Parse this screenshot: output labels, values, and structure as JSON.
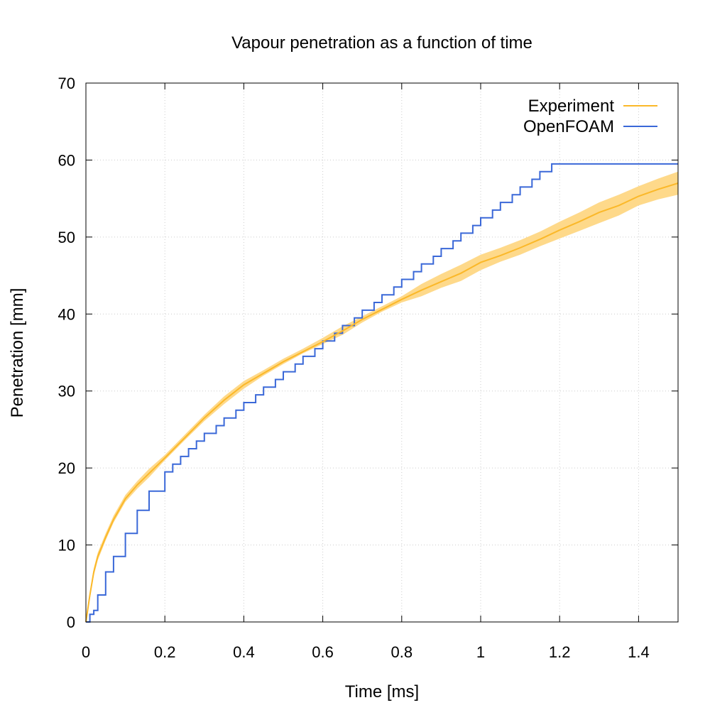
{
  "chart_data": {
    "type": "line",
    "title": "Vapour penetration as a function of time",
    "xlabel": "Time [ms]",
    "ylabel": "Penetration [mm]",
    "xlim": [
      0,
      1.5
    ],
    "ylim": [
      0,
      70
    ],
    "x_ticks": [
      0,
      0.2,
      0.4,
      0.6,
      0.8,
      1,
      1.2,
      1.4
    ],
    "x_tick_labels": [
      "0",
      "0.2",
      "0.4",
      "0.6",
      "0.8",
      "1",
      "1.2",
      "1.4"
    ],
    "y_ticks": [
      0,
      10,
      20,
      30,
      40,
      50,
      60,
      70
    ],
    "y_tick_labels": [
      "0",
      "10",
      "20",
      "30",
      "40",
      "50",
      "60",
      "70"
    ],
    "grid": true,
    "legend_position": "top-right",
    "series": [
      {
        "name": "Experiment",
        "style": "line-with-band",
        "color": "#fbb829",
        "band_color": "#fed98a",
        "x": [
          0,
          0.01,
          0.02,
          0.03,
          0.05,
          0.07,
          0.1,
          0.13,
          0.16,
          0.2,
          0.25,
          0.3,
          0.35,
          0.4,
          0.45,
          0.5,
          0.55,
          0.6,
          0.65,
          0.7,
          0.75,
          0.8,
          0.85,
          0.9,
          0.95,
          1.0,
          1.05,
          1.1,
          1.15,
          1.2,
          1.25,
          1.3,
          1.35,
          1.4,
          1.45,
          1.5
        ],
        "y": [
          0,
          3.5,
          6.5,
          8.5,
          11,
          13.3,
          16,
          17.8,
          19.3,
          21.3,
          23.9,
          26.5,
          28.8,
          30.8,
          32.3,
          33.8,
          35.1,
          36.4,
          37.8,
          39.3,
          40.6,
          41.9,
          43.1,
          44.2,
          45.3,
          46.7,
          47.6,
          48.6,
          49.7,
          50.9,
          52.0,
          53.2,
          54.1,
          55.3,
          56.2,
          57.0
        ],
        "lower": [
          0,
          3.0,
          6.0,
          8.0,
          10.6,
          12.9,
          15.6,
          17.3,
          18.8,
          21.0,
          23.6,
          26.1,
          28.3,
          30.3,
          32.0,
          33.5,
          34.9,
          36.1,
          37.3,
          38.9,
          40.3,
          41.5,
          42.3,
          43.4,
          44.3,
          45.7,
          46.8,
          47.7,
          48.8,
          49.8,
          50.8,
          51.8,
          52.8,
          54.1,
          54.9,
          55.5
        ],
        "upper": [
          0,
          4.0,
          7.0,
          9.0,
          11.5,
          13.8,
          16.5,
          18.3,
          19.9,
          21.7,
          24.3,
          26.9,
          29.3,
          31.3,
          32.7,
          34.2,
          35.5,
          36.9,
          38.4,
          39.7,
          41.0,
          42.3,
          43.9,
          45.2,
          46.4,
          47.7,
          48.6,
          49.6,
          50.7,
          52.0,
          53.2,
          54.5,
          55.5,
          56.6,
          57.6,
          58.5
        ]
      },
      {
        "name": "OpenFOAM",
        "style": "step",
        "color": "#3a68d8",
        "x": [
          0,
          0.01,
          0.02,
          0.03,
          0.05,
          0.07,
          0.1,
          0.13,
          0.16,
          0.2,
          0.22,
          0.24,
          0.26,
          0.28,
          0.3,
          0.33,
          0.35,
          0.38,
          0.4,
          0.43,
          0.45,
          0.48,
          0.5,
          0.53,
          0.55,
          0.58,
          0.6,
          0.63,
          0.65,
          0.68,
          0.7,
          0.73,
          0.75,
          0.78,
          0.8,
          0.83,
          0.85,
          0.88,
          0.9,
          0.93,
          0.95,
          0.98,
          1.0,
          1.03,
          1.05,
          1.08,
          1.1,
          1.13,
          1.15,
          1.18,
          1.2,
          1.23,
          1.25,
          1.28,
          1.3,
          1.33,
          1.35,
          1.38,
          1.4,
          1.43,
          1.45,
          1.48,
          1.5
        ],
        "y": [
          0,
          1.0,
          1.5,
          3.5,
          6.5,
          8.5,
          11.5,
          14.5,
          17.0,
          19.5,
          20.5,
          21.5,
          22.5,
          23.5,
          24.5,
          25.5,
          26.5,
          27.5,
          28.5,
          29.5,
          30.5,
          31.5,
          32.5,
          33.5,
          34.5,
          35.5,
          36.5,
          37.5,
          38.5,
          39.5,
          40.5,
          41.5,
          42.5,
          43.5,
          44.5,
          45.5,
          46.5,
          47.5,
          48.5,
          49.5,
          50.5,
          51.5,
          52.5,
          53.5,
          54.5,
          55.5,
          56.5,
          57.5,
          58.5,
          59.5,
          59.5,
          59.5,
          59.5,
          59.5,
          59.5,
          59.5,
          59.5,
          59.5,
          59.5,
          59.5,
          59.5,
          59.5,
          59.5
        ]
      }
    ]
  }
}
